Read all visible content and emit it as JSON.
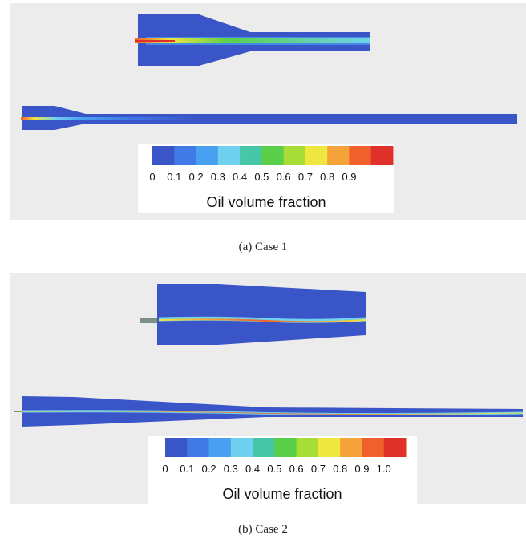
{
  "figure": {
    "case1": {
      "caption": "(a) Case 1",
      "legend": {
        "title": "Oil volume fraction",
        "ticks": [
          "0",
          "0.1",
          "0.2",
          "0.3",
          "0.4",
          "0.5",
          "0.6",
          "0.7",
          "0.8",
          "0.9"
        ],
        "colors": [
          "#3a55c8",
          "#3f7ae6",
          "#4aa0f0",
          "#6fd0f0",
          "#46c8a8",
          "#5ad04a",
          "#a8dc36",
          "#f0e640",
          "#f5a23a",
          "#f0602c",
          "#e0302a"
        ]
      }
    },
    "case2": {
      "caption": "(b) Case 2",
      "legend": {
        "title": "Oil volume fraction",
        "ticks": [
          "0",
          "0.1",
          "0.2",
          "0.3",
          "0.4",
          "0.5",
          "0.6",
          "0.7",
          "0.8",
          "0.9",
          "1.0"
        ],
        "colors": [
          "#3a55c8",
          "#3f7ae6",
          "#4aa0f0",
          "#6fd0f0",
          "#46c8a8",
          "#5ad04a",
          "#a8dc36",
          "#f0e640",
          "#f5a23a",
          "#f0602c",
          "#e0302a"
        ]
      }
    },
    "colors": {
      "water_phase": "#3a55c8",
      "panel_background": "#ececec"
    }
  }
}
